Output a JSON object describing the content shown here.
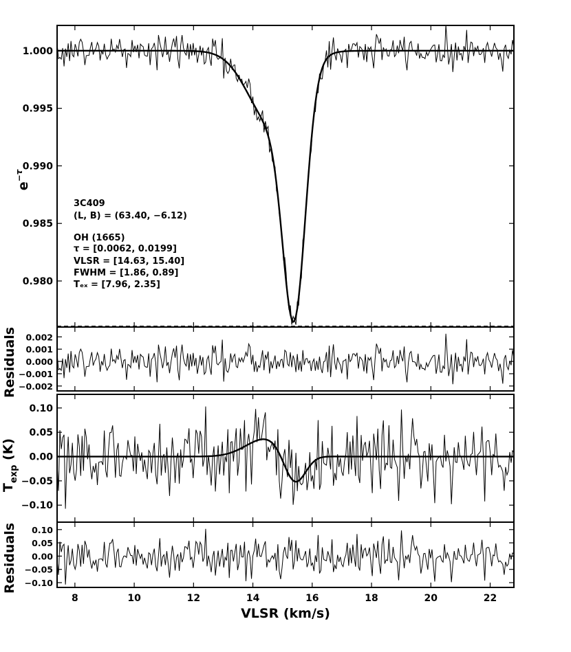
{
  "chart_data": {
    "type": "line",
    "x_axis": {
      "label": "VLSR (km/s)",
      "xlim": [
        7.4,
        22.8
      ],
      "ticks": [
        "8",
        "10",
        "12",
        "14",
        "16",
        "18",
        "20",
        "22"
      ]
    },
    "panels": [
      {
        "id": "abs-spectrum",
        "ylabel": "e⁻ᵗᵃᵘ",
        "ylim": [
          0.976,
          1.0022
        ],
        "yticks": [
          "1.000",
          "0.995",
          "0.990",
          "0.985",
          "0.980"
        ],
        "series": [
          {
            "kind": "data",
            "noise": 0.0007
          },
          {
            "kind": "fit",
            "baseline": 1.0,
            "components": [
              {
                "tau": 0.0062,
                "vlsr": 14.63,
                "fwhm": 1.86
              },
              {
                "tau": 0.0199,
                "vlsr": 15.4,
                "fwhm": 0.89
              }
            ]
          }
        ],
        "annotations": [
          "3C409",
          "(L, B)   = (63.40,   −6.12)",
          "OH (1665)",
          "τ          = [0.0062,  0.0199]",
          "VLSR   = [14.63,  15.40]",
          "FWHM = [1.86,  0.89]",
          "Tₑₓ      = [7.96,  2.35]"
        ]
      },
      {
        "id": "abs-residuals",
        "ylabel": "Residuals",
        "ylim": [
          -0.0024,
          0.0028
        ],
        "yticks": [
          "0.002",
          "0.001",
          "0.000",
          "−0.001",
          "−0.002"
        ],
        "noise": 0.0007
      },
      {
        "id": "emission-spectrum",
        "ylabel": "T_exp (K)",
        "ylim": [
          -0.135,
          0.128
        ],
        "yticks": [
          "0.10",
          "0.05",
          "0.00",
          "−0.05",
          "−0.10"
        ],
        "series": [
          {
            "kind": "data",
            "noise": 0.038
          },
          {
            "kind": "fit",
            "components": [
              {
                "amp": 0.037,
                "vlsr": 14.45,
                "fwhm": 1.6
              },
              {
                "amp": -0.065,
                "vlsr": 15.4,
                "fwhm": 0.85
              }
            ]
          }
        ]
      },
      {
        "id": "emission-residuals",
        "ylabel": "Residuals",
        "ylim": [
          -0.118,
          0.128
        ],
        "yticks": [
          "0.10",
          "0.05",
          "0.00",
          "−0.05",
          "−0.10"
        ],
        "noise": 0.038
      }
    ]
  }
}
